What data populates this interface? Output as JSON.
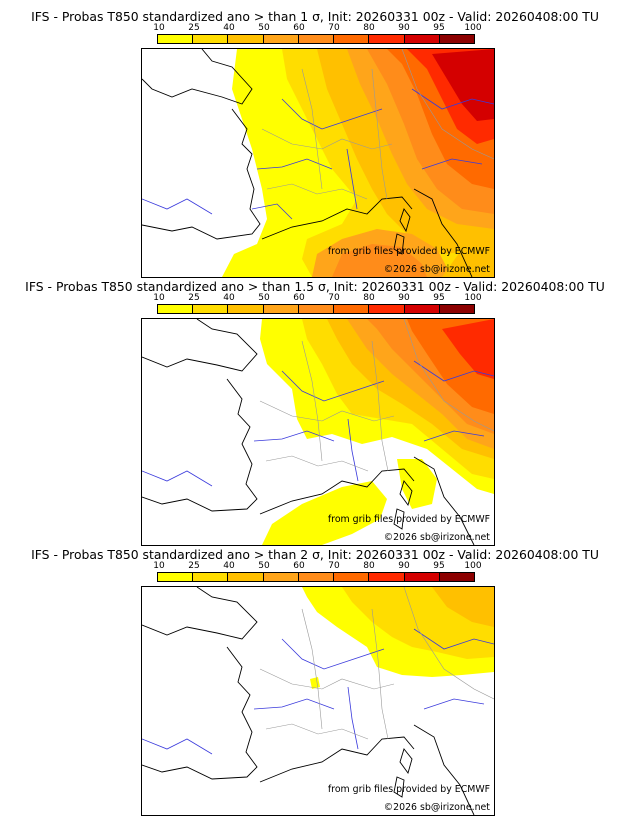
{
  "colors": {
    "c10": "#ffff00",
    "c25": "#ffdd00",
    "c40": "#ffc000",
    "c50": "#ffa51a",
    "c60": "#ff8c1a",
    "c70": "#ff6a00",
    "c80": "#ff2a00",
    "c90": "#d40000",
    "c95": "#8c0000",
    "c100": "#4a0000",
    "coast": "#000000",
    "river": "#3a3adc",
    "border": "#999999"
  },
  "legend_ticks": [
    "10",
    "25",
    "40",
    "50",
    "60",
    "70",
    "80",
    "90",
    "95",
    "100"
  ],
  "credit_source": "from grib files provided by ECMWF",
  "credit_copyright": "©2026 sb@irizone.net",
  "panels": [
    {
      "title": "IFS - Probas T850  standardized ano > than 1 σ, Init: 20260331 00z - Valid: 20260408:00 TU"
    },
    {
      "title": "IFS - Probas T850  standardized ano > than 1.5 σ, Init: 20260331 00z - Valid: 20260408:00 TU"
    },
    {
      "title": "IFS - Probas T850  standardized ano > than 2 σ, Init: 20260331 00z - Valid: 20260408:00 TU"
    }
  ]
}
